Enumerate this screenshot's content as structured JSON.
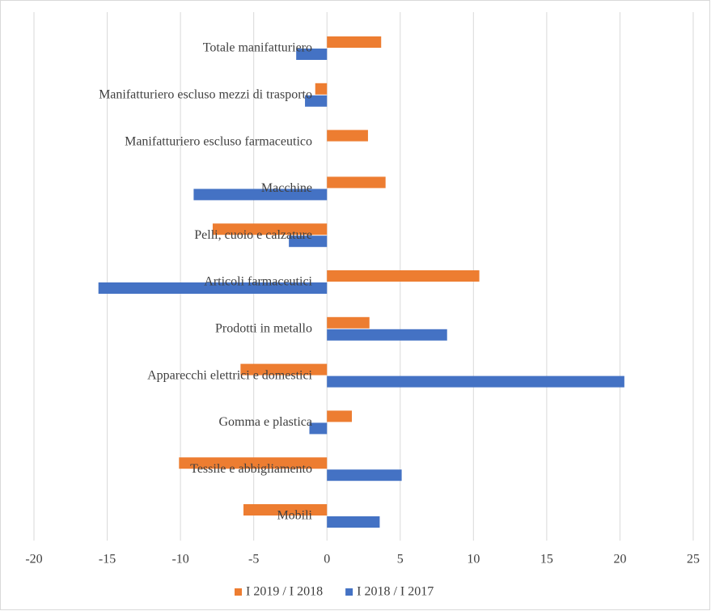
{
  "chart_data": {
    "type": "hbar",
    "categories": [
      "Totale manifatturiero",
      "Manifatturiero escluso mezzi di trasporto",
      "Manifatturiero escluso farmaceutico",
      "Macchine",
      "Pelli, cuoio e calzature",
      "Articoli farmaceutici",
      "Prodotti in metallo",
      "Apparecchi elettrici e domestici",
      "Gomma e plastica",
      "Tessile e abbigliamento",
      "Mobili"
    ],
    "series": [
      {
        "name": "I 2019 / I 2018",
        "color": "#ed7d31",
        "values": [
          3.7,
          -0.8,
          2.8,
          4.0,
          -7.8,
          10.4,
          2.9,
          -5.9,
          1.7,
          -10.1,
          -5.7
        ]
      },
      {
        "name": "I 2018 / I 2017",
        "color": "#4472c4",
        "values": [
          -2.1,
          -1.5,
          null,
          -9.1,
          -2.6,
          -15.6,
          8.2,
          20.3,
          -1.2,
          5.1,
          3.6
        ]
      }
    ],
    "xlim": [
      -20,
      25
    ],
    "xticks": [
      -20,
      -15,
      -10,
      -5,
      0,
      5,
      10,
      15,
      20,
      25
    ],
    "grid": true,
    "legend": "bottom"
  }
}
